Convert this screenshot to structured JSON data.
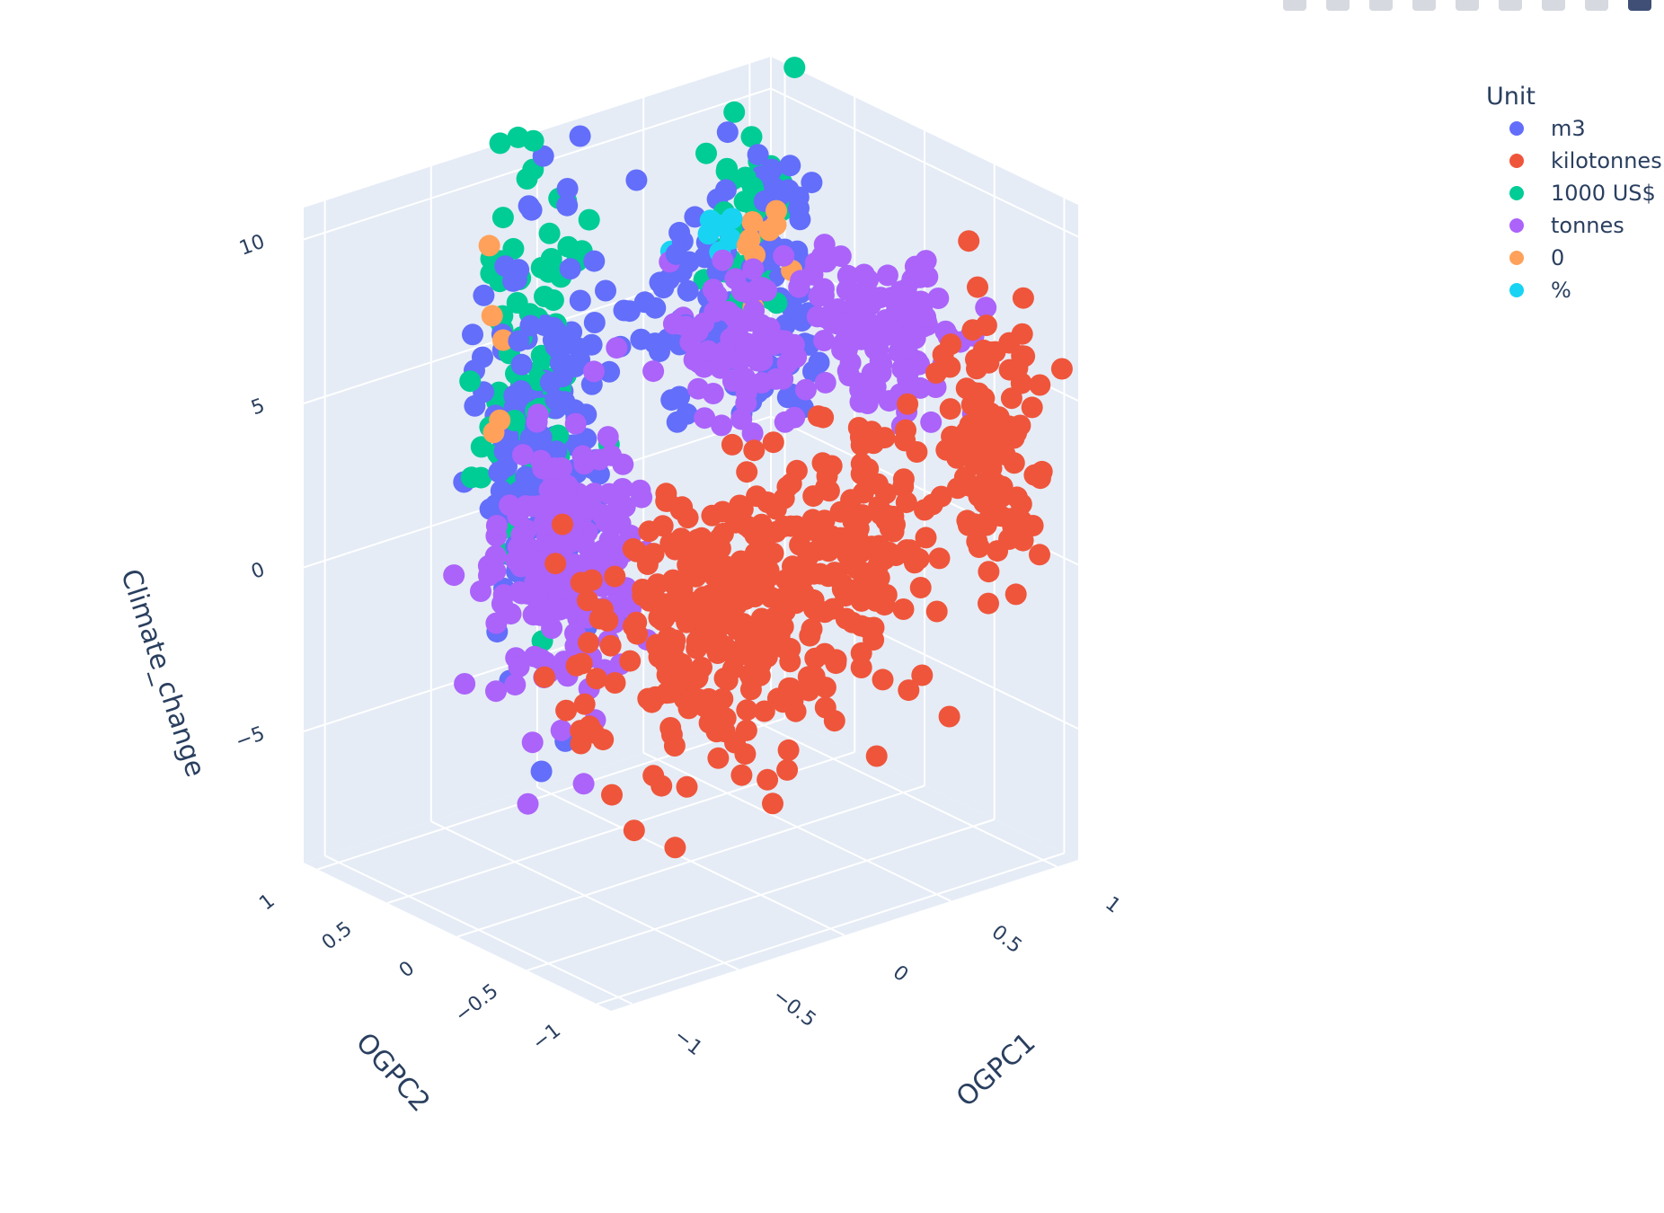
{
  "modebar": {
    "icons": [
      "camera-icon",
      "zoom-icon",
      "pan-icon",
      "orbit-icon",
      "turntable-icon",
      "reset-icon",
      "home-icon",
      "hover-icon",
      "plotly-logo-icon"
    ]
  },
  "colors": {
    "m3": "#636efa",
    "kilotonnes": "#ef553b",
    "1000 US$": "#00cc96",
    "tonnes": "#ab63fa",
    "0": "#ffa15a",
    "%": "#19d3f3",
    "pane": "#e5ecf6",
    "grid": "#ffffff"
  },
  "chart_data": {
    "type": "scatter3d",
    "title": "",
    "axes": {
      "x": {
        "label": "OGPC1",
        "range": [
          -1.1,
          1.1
        ],
        "ticks": [
          -1,
          -0.5,
          0,
          0.5,
          1
        ],
        "tick_labels": [
          "−1",
          "−0.5",
          "0",
          "0.5",
          "1"
        ]
      },
      "y": {
        "label": "OGPC2",
        "range": [
          -1.1,
          1.1
        ],
        "ticks": [
          -1,
          -0.5,
          0,
          0.5,
          1
        ],
        "tick_labels": [
          "−1",
          "−0.5",
          "0",
          "0.5",
          "1"
        ]
      },
      "z": {
        "label": "Climate_change",
        "range": [
          -9,
          11
        ],
        "ticks": [
          -5,
          0,
          5,
          10
        ],
        "tick_labels": [
          "−5",
          "0",
          "5",
          "10"
        ]
      }
    },
    "grid": true,
    "legend": {
      "title": "Unit",
      "placement": "top-right"
    },
    "series": [
      {
        "name": "m3",
        "color": "#636efa",
        "clusters": [
          {
            "x": 0.95,
            "y": 0.9,
            "z": 4.5,
            "spread": [
              0.12,
              0.12,
              2.2
            ],
            "count": 70
          },
          {
            "x": -0.05,
            "y": 0.95,
            "z": 2.2,
            "spread": [
              0.14,
              0.12,
              3.0
            ],
            "count": 150
          },
          {
            "x": 0.55,
            "y": 0.95,
            "z": 4.5,
            "spread": [
              0.12,
              0.12,
              2.2
            ],
            "count": 40
          }
        ]
      },
      {
        "name": "kilotonnes",
        "color": "#ef553b",
        "clusters": [
          {
            "x": 0.85,
            "y": -0.8,
            "z": 3.5,
            "spread": [
              0.1,
              0.12,
              2.0
            ],
            "count": 110
          },
          {
            "x": -0.3,
            "y": -0.75,
            "z": 0.5,
            "spread": [
              0.35,
              0.12,
              2.2
            ],
            "count": 340
          },
          {
            "x": 0.35,
            "y": -0.8,
            "z": 2.0,
            "spread": [
              0.1,
              0.12,
              2.0
            ],
            "count": 70
          }
        ]
      },
      {
        "name": "1000 US$",
        "color": "#00cc96",
        "clusters": [
          {
            "x": -0.05,
            "y": 1.05,
            "z": 3.5,
            "spread": [
              0.12,
              0.06,
              3.2
            ],
            "count": 90
          },
          {
            "x": 0.95,
            "y": 1.02,
            "z": 6.0,
            "spread": [
              0.1,
              0.06,
              2.0
            ],
            "count": 50
          }
        ]
      },
      {
        "name": "tonnes",
        "color": "#ab63fa",
        "clusters": [
          {
            "x": 0.9,
            "y": 0.05,
            "z": 5.0,
            "spread": [
              0.14,
              0.22,
              1.1
            ],
            "count": 130
          },
          {
            "x": -0.45,
            "y": 0.2,
            "z": 0.8,
            "spread": [
              0.16,
              0.14,
              2.1
            ],
            "count": 190
          },
          {
            "x": 0.55,
            "y": 0.5,
            "z": 4.5,
            "spread": [
              0.12,
              0.16,
              1.1
            ],
            "count": 70
          }
        ]
      },
      {
        "name": "0",
        "color": "#ffa15a",
        "clusters": [
          {
            "x": 0.75,
            "y": 0.75,
            "z": 6.8,
            "spread": [
              0.1,
              0.08,
              0.6
            ],
            "count": 10
          },
          {
            "x": -0.3,
            "y": 0.95,
            "z": 5.5,
            "spread": [
              0.04,
              0.04,
              1.3
            ],
            "count": 5
          }
        ]
      },
      {
        "name": "%",
        "color": "#19d3f3",
        "clusters": [
          {
            "x": 0.72,
            "y": 0.85,
            "z": 6.8,
            "spread": [
              0.08,
              0.06,
              0.4
            ],
            "count": 7
          }
        ]
      }
    ]
  }
}
